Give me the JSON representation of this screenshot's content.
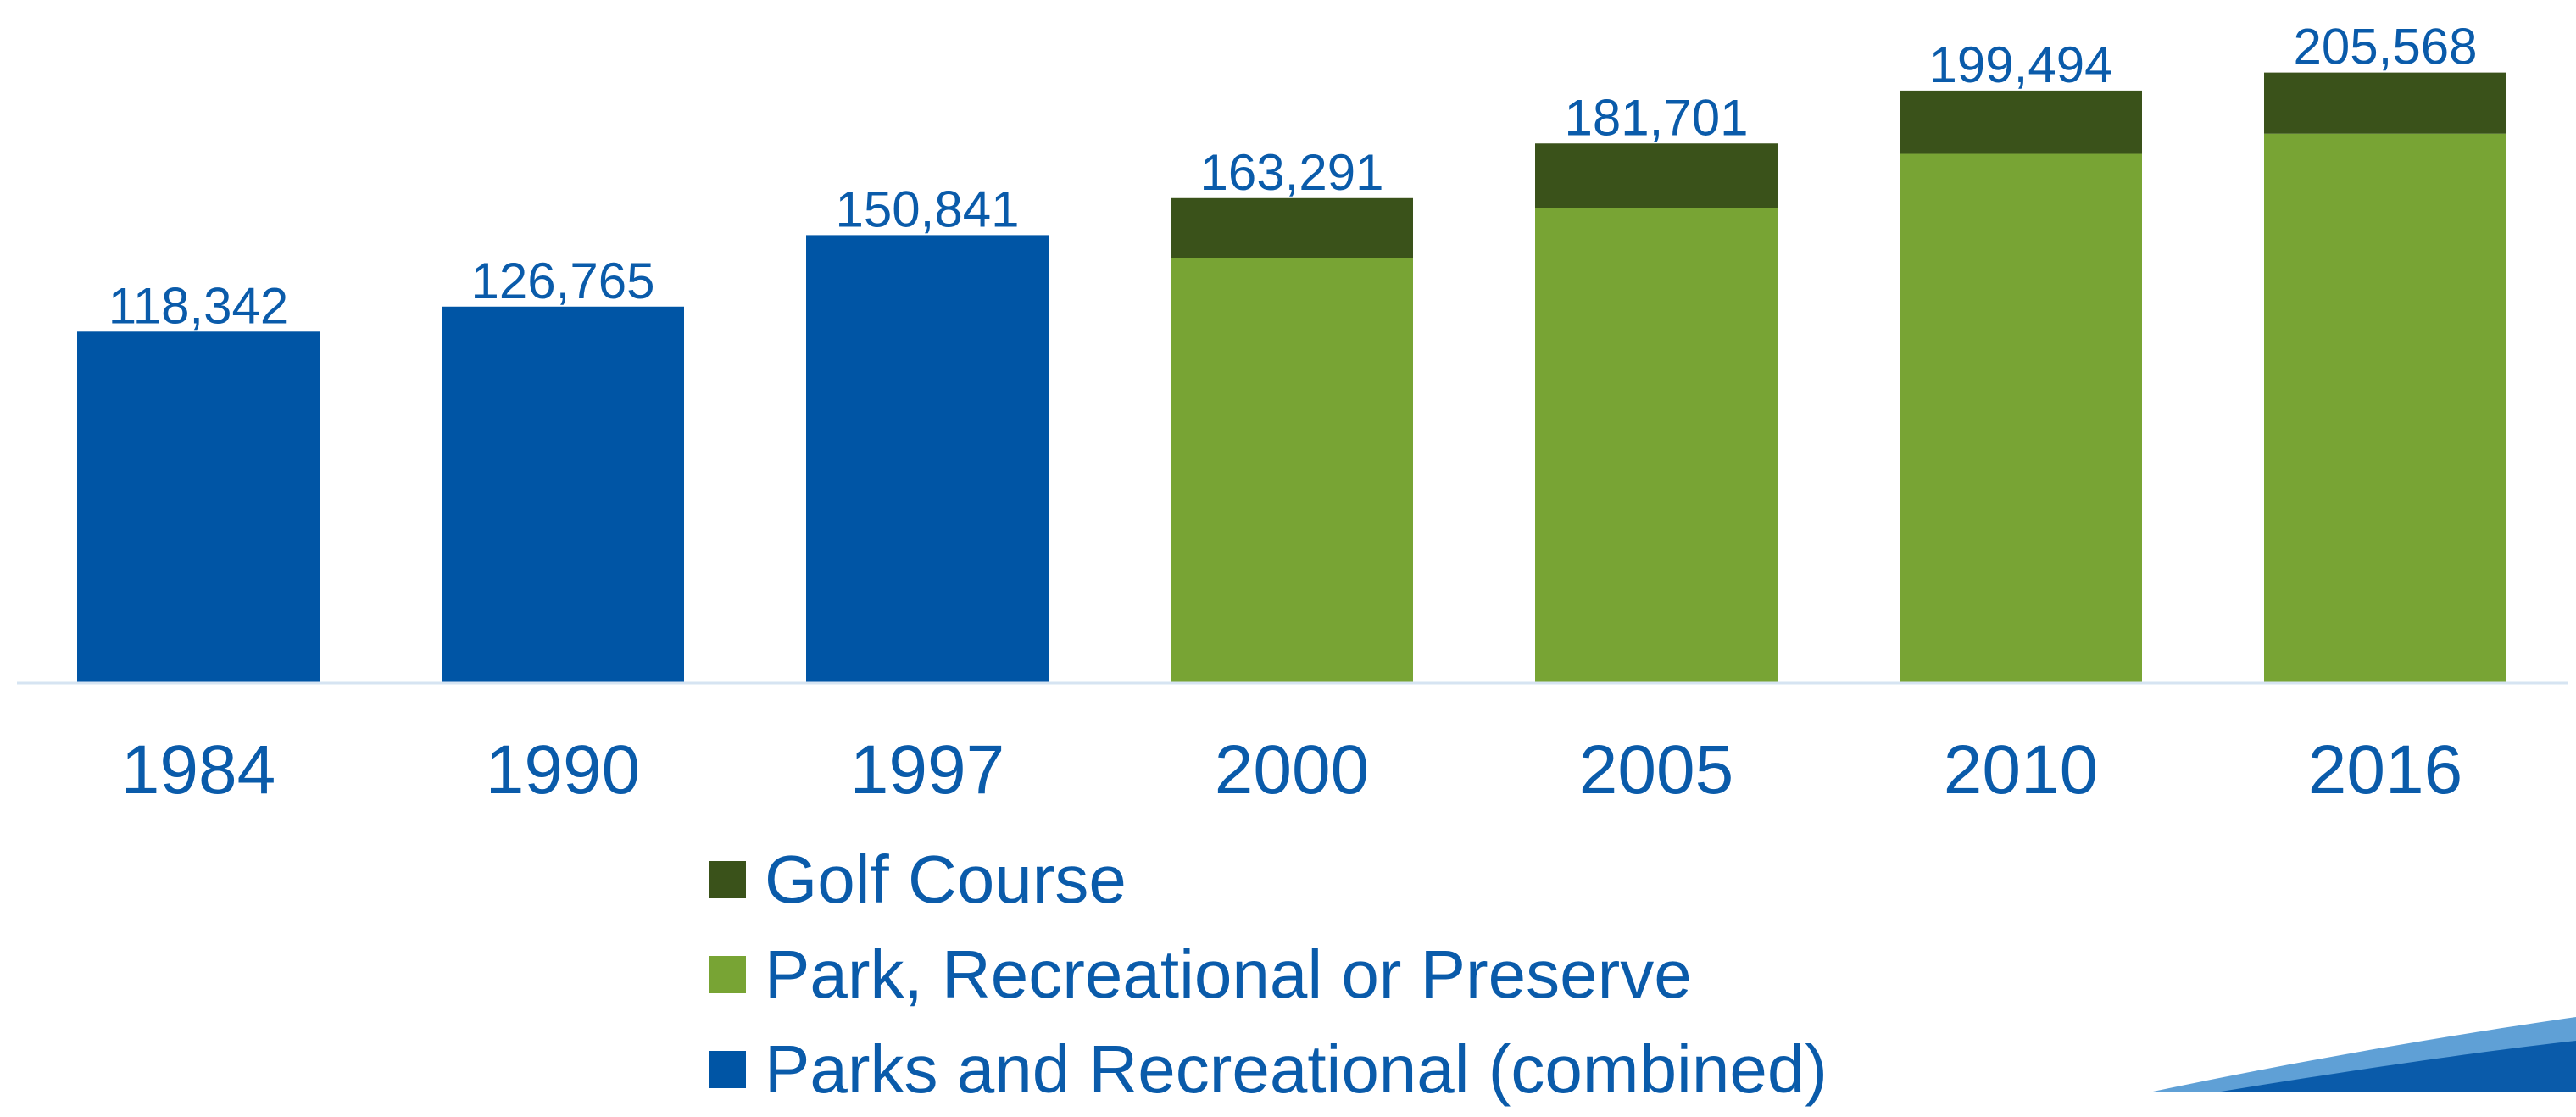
{
  "colors": {
    "text": "#0A5BAA",
    "baseline": "#D6E4F2",
    "combined": "#0055A5",
    "park": "#78A434",
    "golf": "#3A521A",
    "accent_dark": "#0A5BAA",
    "accent_light": "#5FA0D6"
  },
  "chart_data": {
    "type": "bar",
    "stacked": true,
    "title": "",
    "xlabel": "",
    "ylabel": "",
    "grid": false,
    "legend_position": "bottom",
    "categories": [
      "1984",
      "1990",
      "1997",
      "2000",
      "2005",
      "2010",
      "2016"
    ],
    "totals": [
      118342,
      126765,
      150841,
      163291,
      181701,
      199494,
      205568
    ],
    "total_labels": [
      "118,342",
      "126,765",
      "150,841",
      "163,291",
      "181,701",
      "199,494",
      "205,568"
    ],
    "series": [
      {
        "name": "Parks and Recreational (combined)",
        "color_key": "combined",
        "values": [
          118342,
          126765,
          150841,
          0,
          0,
          0,
          0
        ]
      },
      {
        "name": "Park, Recreational or Preserve",
        "color_key": "park",
        "values": [
          0,
          0,
          0,
          143000,
          159800,
          178200,
          185000
        ]
      },
      {
        "name": "Golf Course",
        "color_key": "golf",
        "values": [
          0,
          0,
          0,
          20291,
          21901,
          21294,
          20568
        ]
      }
    ],
    "legend_order": [
      "Golf Course",
      "Park, Recreational or Preserve",
      "Parks and Recreational (combined)"
    ],
    "ylim": [
      0,
      230000
    ]
  }
}
